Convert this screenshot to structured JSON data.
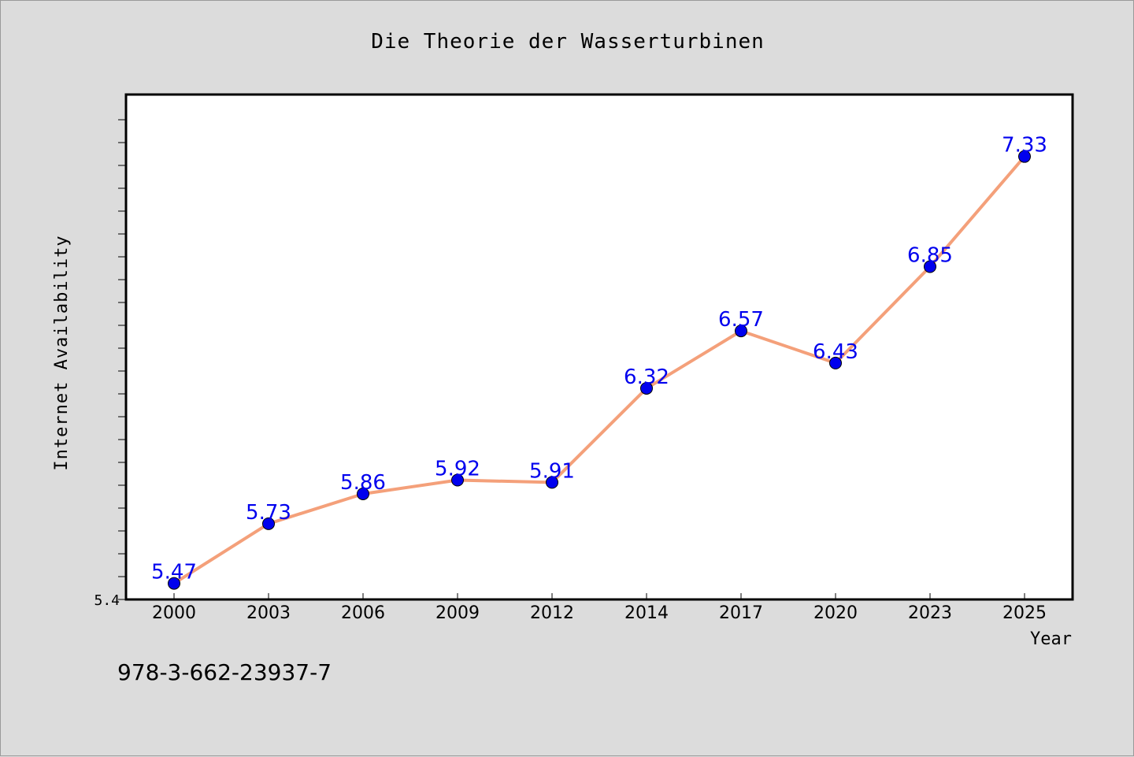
{
  "chart_data": {
    "type": "line",
    "title": "Die Theorie der Wasserturbinen",
    "xlabel": "Year",
    "ylabel": "Internet Availability",
    "categories": [
      "2000",
      "2003",
      "2006",
      "2009",
      "2012",
      "2014",
      "2017",
      "2020",
      "2023",
      "2025"
    ],
    "series": [
      {
        "values": [
          5.47,
          5.73,
          5.86,
          5.92,
          5.91,
          6.32,
          6.57,
          6.43,
          6.85,
          7.33
        ],
        "data_labels": [
          "5.47",
          "5.73",
          "5.86",
          "5.92",
          "5.91",
          "6.32",
          "6.57",
          "6.43",
          "6.85",
          "7.33"
        ],
        "line_color": "#f4a07a",
        "marker_color": "#0000ee",
        "label_color": "#0000ee"
      }
    ],
    "ylim": [
      5.4,
      7.6
    ],
    "y_tick_labels": [
      "5.4"
    ],
    "grid": false,
    "legend": "none"
  },
  "footer_text": "978-3-662-23937-7",
  "colors": {
    "background": "#dcdcdc",
    "plot_background": "#ffffff",
    "axis": "#000000"
  }
}
